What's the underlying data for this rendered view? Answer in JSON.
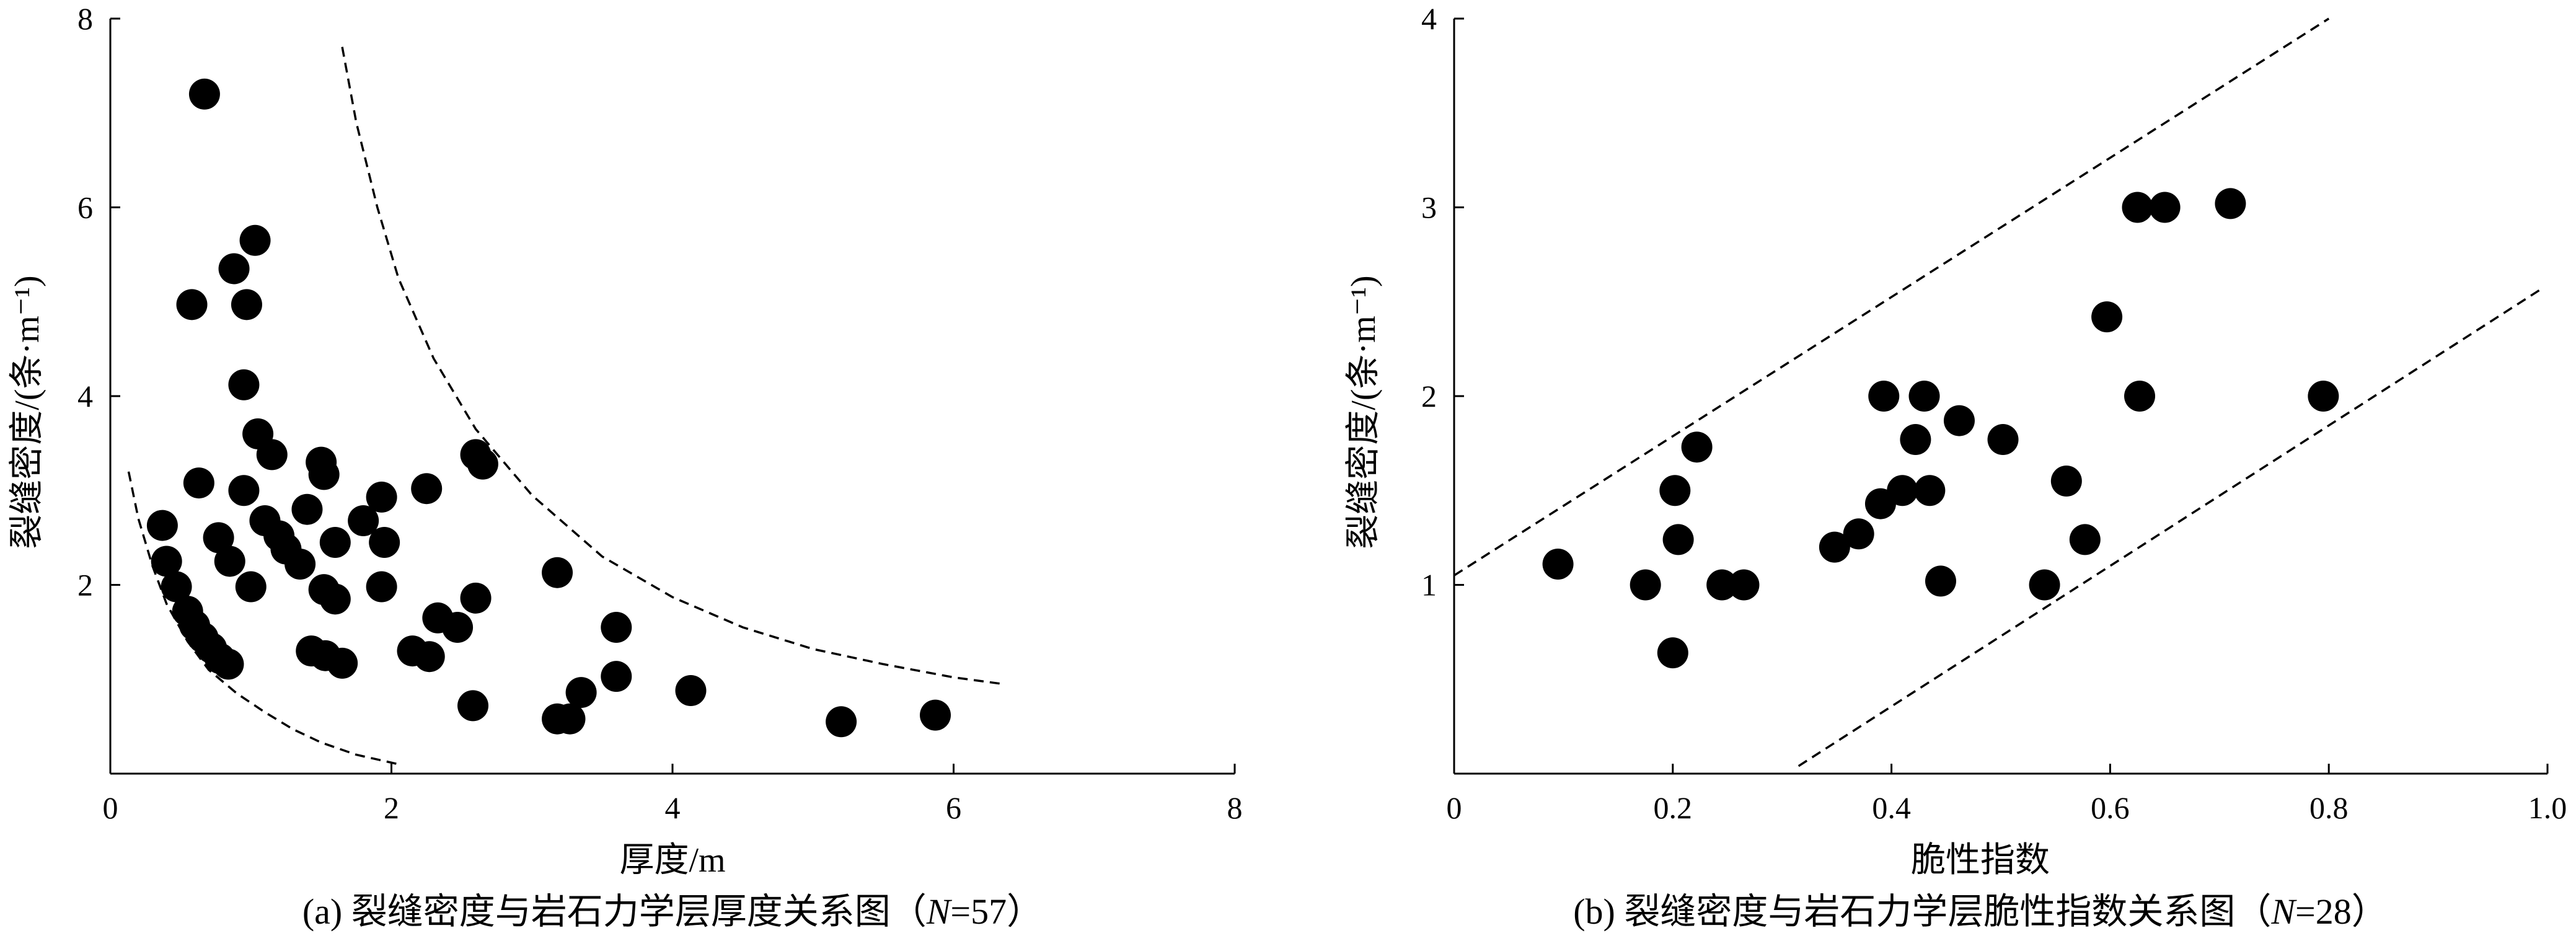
{
  "chart_data": [
    {
      "type": "scatter",
      "panel": "a",
      "caption": "(a) 裂缝密度与岩石力学层厚度关系图（",
      "caption_n_label": "N",
      "caption_n_value": "=57）",
      "xlabel": "厚度/m",
      "ylabel": "裂缝密度/(条·m⁻¹)",
      "xlim": [
        0,
        8
      ],
      "ylim": [
        0,
        8
      ],
      "xticks": [
        0,
        2,
        4,
        6,
        8
      ],
      "yticks": [
        2,
        4,
        6,
        8
      ],
      "tick_labels_x": [
        "0",
        "2",
        "4",
        "6",
        "8"
      ],
      "tick_labels_y": [
        "2",
        "4",
        "6",
        "8"
      ],
      "marker_color": "#000000",
      "points": [
        {
          "x": 0.67,
          "y": 7.2
        },
        {
          "x": 1.03,
          "y": 5.65
        },
        {
          "x": 0.88,
          "y": 5.35
        },
        {
          "x": 0.58,
          "y": 4.97
        },
        {
          "x": 0.97,
          "y": 4.97
        },
        {
          "x": 0.95,
          "y": 4.12
        },
        {
          "x": 1.05,
          "y": 3.6
        },
        {
          "x": 1.15,
          "y": 3.38
        },
        {
          "x": 1.5,
          "y": 3.3
        },
        {
          "x": 1.52,
          "y": 3.17
        },
        {
          "x": 0.63,
          "y": 3.08
        },
        {
          "x": 0.95,
          "y": 3.0
        },
        {
          "x": 1.1,
          "y": 2.68
        },
        {
          "x": 1.2,
          "y": 2.52
        },
        {
          "x": 1.25,
          "y": 2.38
        },
        {
          "x": 1.35,
          "y": 2.22
        },
        {
          "x": 1.4,
          "y": 2.8
        },
        {
          "x": 1.6,
          "y": 2.45
        },
        {
          "x": 1.8,
          "y": 2.68
        },
        {
          "x": 1.93,
          "y": 2.93
        },
        {
          "x": 1.95,
          "y": 2.45
        },
        {
          "x": 2.25,
          "y": 3.02
        },
        {
          "x": 2.6,
          "y": 3.38
        },
        {
          "x": 2.65,
          "y": 3.28
        },
        {
          "x": 0.37,
          "y": 2.63
        },
        {
          "x": 0.4,
          "y": 2.25
        },
        {
          "x": 0.47,
          "y": 1.98
        },
        {
          "x": 0.55,
          "y": 1.72
        },
        {
          "x": 0.6,
          "y": 1.57
        },
        {
          "x": 0.66,
          "y": 1.44
        },
        {
          "x": 0.72,
          "y": 1.33
        },
        {
          "x": 0.78,
          "y": 1.22
        },
        {
          "x": 0.84,
          "y": 1.16
        },
        {
          "x": 0.77,
          "y": 2.5
        },
        {
          "x": 0.85,
          "y": 2.25
        },
        {
          "x": 1.0,
          "y": 1.98
        },
        {
          "x": 1.52,
          "y": 1.95
        },
        {
          "x": 1.6,
          "y": 1.85
        },
        {
          "x": 1.93,
          "y": 1.98
        },
        {
          "x": 1.43,
          "y": 1.3
        },
        {
          "x": 1.53,
          "y": 1.25
        },
        {
          "x": 1.65,
          "y": 1.17
        },
        {
          "x": 2.15,
          "y": 1.3
        },
        {
          "x": 2.27,
          "y": 1.24
        },
        {
          "x": 2.33,
          "y": 1.65
        },
        {
          "x": 2.47,
          "y": 1.55
        },
        {
          "x": 2.6,
          "y": 1.86
        },
        {
          "x": 2.58,
          "y": 0.72
        },
        {
          "x": 3.18,
          "y": 2.13
        },
        {
          "x": 3.18,
          "y": 0.58
        },
        {
          "x": 3.27,
          "y": 0.58
        },
        {
          "x": 3.35,
          "y": 0.86
        },
        {
          "x": 3.6,
          "y": 1.55
        },
        {
          "x": 3.6,
          "y": 1.03
        },
        {
          "x": 4.13,
          "y": 0.88
        },
        {
          "x": 5.2,
          "y": 0.55
        },
        {
          "x": 5.87,
          "y": 0.62
        }
      ],
      "lower_envelope": [
        [
          0.13,
          3.2
        ],
        [
          0.2,
          2.7
        ],
        [
          0.3,
          2.2
        ],
        [
          0.4,
          1.8
        ],
        [
          0.55,
          1.4
        ],
        [
          0.7,
          1.1
        ],
        [
          0.9,
          0.85
        ],
        [
          1.1,
          0.65
        ],
        [
          1.3,
          0.47
        ],
        [
          1.5,
          0.33
        ],
        [
          1.75,
          0.2
        ],
        [
          2.05,
          0.1
        ]
      ],
      "upper_envelope": [
        [
          1.65,
          7.7
        ],
        [
          1.75,
          6.9
        ],
        [
          1.9,
          6.0
        ],
        [
          2.05,
          5.25
        ],
        [
          2.3,
          4.4
        ],
        [
          2.6,
          3.65
        ],
        [
          3.0,
          2.95
        ],
        [
          3.5,
          2.3
        ],
        [
          4.0,
          1.87
        ],
        [
          4.5,
          1.55
        ],
        [
          5.0,
          1.32
        ],
        [
          5.5,
          1.16
        ],
        [
          6.0,
          1.02
        ],
        [
          6.35,
          0.95
        ]
      ]
    },
    {
      "type": "scatter",
      "panel": "b",
      "caption": "(b) 裂缝密度与岩石力学层脆性指数关系图（",
      "caption_n_label": "N",
      "caption_n_value": "=28）",
      "xlabel": "脆性指数",
      "ylabel": "裂缝密度/(条·m⁻¹)",
      "xlim": [
        0,
        1.0
      ],
      "ylim": [
        0,
        4
      ],
      "xticks": [
        0,
        0.2,
        0.4,
        0.6,
        0.8,
        1.0
      ],
      "yticks": [
        1,
        2,
        3,
        4
      ],
      "tick_labels_x": [
        "0",
        "0.2",
        "0.4",
        "0.6",
        "0.8",
        "1.0"
      ],
      "tick_labels_y": [
        "1",
        "2",
        "3",
        "4"
      ],
      "marker_color": "#000000",
      "points": [
        {
          "x": 0.095,
          "y": 1.11
        },
        {
          "x": 0.175,
          "y": 1.0
        },
        {
          "x": 0.2,
          "y": 0.64
        },
        {
          "x": 0.202,
          "y": 1.5
        },
        {
          "x": 0.205,
          "y": 1.24
        },
        {
          "x": 0.222,
          "y": 1.73
        },
        {
          "x": 0.245,
          "y": 1.0
        },
        {
          "x": 0.265,
          "y": 1.0
        },
        {
          "x": 0.348,
          "y": 1.2
        },
        {
          "x": 0.37,
          "y": 1.27
        },
        {
          "x": 0.39,
          "y": 1.43
        },
        {
          "x": 0.393,
          "y": 2.0
        },
        {
          "x": 0.41,
          "y": 1.5
        },
        {
          "x": 0.422,
          "y": 1.77
        },
        {
          "x": 0.43,
          "y": 2.0
        },
        {
          "x": 0.435,
          "y": 1.5
        },
        {
          "x": 0.445,
          "y": 1.02
        },
        {
          "x": 0.462,
          "y": 1.87
        },
        {
          "x": 0.502,
          "y": 1.77
        },
        {
          "x": 0.54,
          "y": 1.0
        },
        {
          "x": 0.56,
          "y": 1.55
        },
        {
          "x": 0.577,
          "y": 1.24
        },
        {
          "x": 0.597,
          "y": 2.42
        },
        {
          "x": 0.625,
          "y": 3.0
        },
        {
          "x": 0.627,
          "y": 2.0
        },
        {
          "x": 0.65,
          "y": 3.0
        },
        {
          "x": 0.71,
          "y": 3.02
        },
        {
          "x": 0.795,
          "y": 2.0
        }
      ],
      "upper_bound": [
        [
          0.0,
          1.05
        ],
        [
          0.8,
          4.0
        ]
      ],
      "lower_bound": [
        [
          0.315,
          0.04
        ],
        [
          0.995,
          2.57
        ]
      ]
    }
  ]
}
